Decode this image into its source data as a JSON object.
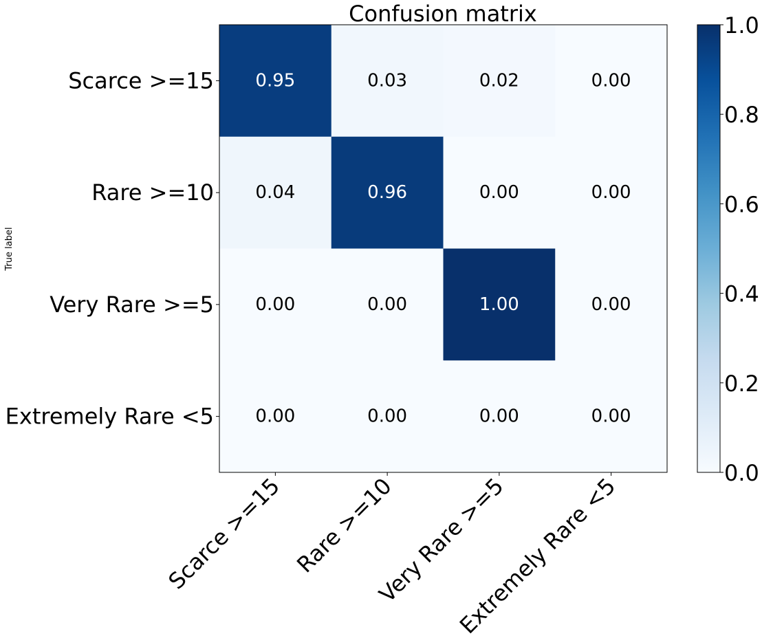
{
  "chart_data": {
    "type": "heatmap",
    "title": "Confusion matrix",
    "ylabel": "True label",
    "xlabel": "",
    "row_labels": [
      "Scarce >=15",
      "Rare >=10",
      "Very Rare >=5",
      "Extremely Rare <5"
    ],
    "col_labels": [
      "Scarce >=15",
      "Rare >=10",
      "Very Rare >=5",
      "Extremely Rare <5"
    ],
    "values": [
      [
        0.95,
        0.03,
        0.02,
        0.0
      ],
      [
        0.04,
        0.96,
        0.0,
        0.0
      ],
      [
        0.0,
        0.0,
        1.0,
        0.0
      ],
      [
        0.0,
        0.0,
        0.0,
        0.0
      ]
    ],
    "cell_labels": [
      [
        "0.95",
        "0.03",
        "0.02",
        "0.00"
      ],
      [
        "0.04",
        "0.96",
        "0.00",
        "0.00"
      ],
      [
        "0.00",
        "0.00",
        "1.00",
        "0.00"
      ],
      [
        "0.00",
        "0.00",
        "0.00",
        "0.00"
      ]
    ],
    "colormap": "Blues",
    "colorbar": {
      "range": [
        0.0,
        1.0
      ],
      "ticks": [
        "0.0",
        "0.2",
        "0.4",
        "0.6",
        "0.8",
        "1.0"
      ]
    },
    "grid": false
  }
}
